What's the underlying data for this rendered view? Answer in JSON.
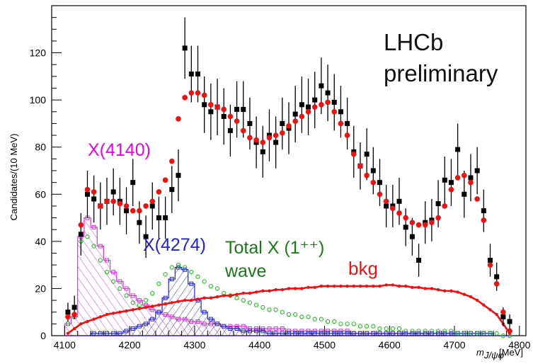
{
  "chart_data": {
    "type": "scatter",
    "title": "",
    "ylabel": "Candidates/(10 MeV)",
    "xlabel_main": "m",
    "xlabel_sub": "J/ψφ",
    "xlabel_unit": "[MeV]",
    "xlim": [
      4080,
      4810
    ],
    "ylim": [
      0,
      140
    ],
    "x_ticks": [
      4100,
      4200,
      4300,
      4400,
      4500,
      4600,
      4700,
      4800
    ],
    "y_ticks": [
      0,
      20,
      40,
      60,
      80,
      100,
      120
    ],
    "annotations": {
      "brand": [
        "LHCb",
        "preliminary"
      ],
      "x4140": "X(4140)",
      "x4274": "X(4274)",
      "total": [
        "Total X (1⁺⁺)",
        "wave"
      ],
      "bkg": "bkg"
    },
    "colors": {
      "data": "#000000",
      "fit": "#ee1111",
      "x4140": "#dd33dd",
      "x4274": "#2222dd",
      "total": "#22bb22",
      "bkg": "#ee1111"
    },
    "series": [
      {
        "key": "data",
        "x": [
          4105,
          4115,
          4125,
          4135,
          4145,
          4155,
          4165,
          4175,
          4185,
          4195,
          4205,
          4215,
          4225,
          4235,
          4245,
          4255,
          4265,
          4275,
          4285,
          4295,
          4305,
          4315,
          4325,
          4335,
          4345,
          4355,
          4365,
          4375,
          4385,
          4395,
          4405,
          4415,
          4425,
          4435,
          4445,
          4455,
          4465,
          4475,
          4485,
          4495,
          4505,
          4515,
          4525,
          4535,
          4545,
          4555,
          4565,
          4575,
          4585,
          4595,
          4605,
          4615,
          4625,
          4635,
          4645,
          4655,
          4665,
          4675,
          4685,
          4695,
          4705,
          4715,
          4725,
          4735,
          4745,
          4755,
          4765,
          4775,
          4785
        ],
        "y": [
          10,
          12,
          43,
          60,
          58,
          55,
          57,
          61,
          57,
          53,
          65,
          48,
          42,
          55,
          50,
          50,
          62,
          68,
          122,
          111,
          111,
          98,
          95,
          97,
          93,
          87,
          96,
          96,
          90,
          82,
          78,
          85,
          82,
          90,
          88,
          94,
          98,
          97,
          100,
          106,
          103,
          99,
          95,
          90,
          78,
          72,
          77,
          70,
          65,
          55,
          55,
          57,
          46,
          42,
          32,
          48,
          49,
          56,
          66,
          65,
          79,
          60,
          67,
          70,
          53,
          32,
          25,
          8,
          6
        ],
        "err": [
          4,
          5,
          9,
          10,
          10,
          10,
          10,
          10,
          10,
          10,
          10,
          9,
          9,
          10,
          9,
          9,
          10,
          11,
          13,
          12,
          12,
          12,
          12,
          12,
          12,
          11,
          12,
          12,
          11,
          11,
          11,
          11,
          11,
          11,
          11,
          12,
          12,
          12,
          12,
          12,
          12,
          12,
          11,
          11,
          11,
          10,
          11,
          10,
          10,
          9,
          9,
          10,
          8,
          8,
          7,
          9,
          9,
          10,
          10,
          10,
          11,
          10,
          10,
          10,
          9,
          7,
          6,
          4,
          3
        ]
      },
      {
        "key": "fit",
        "x": [
          4105,
          4115,
          4125,
          4135,
          4145,
          4155,
          4165,
          4175,
          4185,
          4195,
          4205,
          4215,
          4225,
          4235,
          4245,
          4255,
          4265,
          4275,
          4285,
          4295,
          4305,
          4315,
          4325,
          4335,
          4345,
          4355,
          4365,
          4375,
          4385,
          4395,
          4405,
          4415,
          4425,
          4435,
          4445,
          4455,
          4465,
          4475,
          4485,
          4495,
          4505,
          4515,
          4525,
          4535,
          4545,
          4555,
          4565,
          4575,
          4585,
          4595,
          4605,
          4615,
          4625,
          4635,
          4645,
          4655,
          4665,
          4675,
          4685,
          4695,
          4705,
          4715,
          4725,
          4735,
          4745,
          4755,
          4765,
          4775,
          4785
        ],
        "y": [
          8,
          9,
          47,
          62,
          61,
          55,
          57,
          57,
          56,
          55,
          53,
          53,
          55,
          57,
          61,
          66,
          74,
          92,
          101,
          103,
          103,
          102,
          98,
          97,
          96,
          93,
          91,
          87,
          84,
          83,
          82,
          84,
          85,
          86,
          89,
          91,
          93,
          95,
          97,
          98,
          99,
          95,
          90,
          85,
          77,
          72,
          68,
          65,
          60,
          57,
          54,
          52,
          50,
          48,
          47,
          47,
          48,
          50,
          55,
          62,
          67,
          68,
          65,
          58,
          49,
          30,
          22,
          10,
          2
        ]
      },
      {
        "key": "x4140",
        "x": [
          4105,
          4115,
          4125,
          4135,
          4145,
          4155,
          4165,
          4175,
          4185,
          4195,
          4205,
          4215,
          4225,
          4235,
          4245,
          4255,
          4265,
          4275,
          4285,
          4295,
          4305,
          4315,
          4325,
          4335,
          4345,
          4355,
          4365,
          4375,
          4385,
          4395,
          4405,
          4415,
          4425,
          4435,
          4445,
          4455,
          4465,
          4475,
          4485,
          4495,
          4505,
          4515,
          4525,
          4535,
          4545,
          4555,
          4565,
          4575,
          4585,
          4595,
          4605,
          4615,
          4625,
          4635,
          4645,
          4655,
          4665,
          4675,
          4685,
          4695,
          4705,
          4715,
          4725,
          4735,
          4745,
          4755,
          4765,
          4775,
          4785
        ],
        "y": [
          5,
          8,
          42,
          50,
          46,
          38,
          32,
          27,
          23,
          20,
          17,
          15,
          13,
          11,
          10,
          9,
          8,
          7,
          7,
          6,
          6,
          5,
          5,
          5,
          4,
          4,
          4,
          4,
          3,
          3,
          3,
          3,
          3,
          3,
          2,
          2,
          2,
          2,
          2,
          2,
          2,
          2,
          2,
          2,
          1,
          1,
          1,
          1,
          1,
          1,
          1,
          1,
          1,
          1,
          1,
          1,
          1,
          1,
          1,
          1,
          1,
          1,
          1,
          1,
          1,
          1,
          0,
          0,
          0
        ]
      },
      {
        "key": "x4274",
        "x": [
          4105,
          4115,
          4125,
          4135,
          4145,
          4155,
          4165,
          4175,
          4185,
          4195,
          4205,
          4215,
          4225,
          4235,
          4245,
          4255,
          4265,
          4275,
          4285,
          4295,
          4305,
          4315,
          4325,
          4335,
          4345,
          4355,
          4365,
          4375,
          4385,
          4395,
          4405,
          4415,
          4425,
          4435,
          4445,
          4455,
          4465,
          4475,
          4485,
          4495,
          4505,
          4515,
          4525,
          4535,
          4545,
          4555,
          4565,
          4575,
          4585,
          4595,
          4605,
          4615,
          4625,
          4635,
          4645,
          4655,
          4665,
          4675,
          4685,
          4695,
          4705,
          4715,
          4725,
          4735,
          4745,
          4755,
          4765,
          4775,
          4785
        ],
        "y": [
          0,
          0,
          0,
          0,
          1,
          1,
          1,
          1,
          1,
          2,
          3,
          4,
          5,
          7,
          10,
          16,
          24,
          29,
          28,
          22,
          15,
          10,
          7,
          5,
          4,
          3,
          3,
          2,
          2,
          2,
          2,
          1,
          1,
          1,
          1,
          1,
          1,
          1,
          1,
          1,
          1,
          1,
          1,
          1,
          1,
          1,
          1,
          1,
          1,
          1,
          1,
          1,
          1,
          1,
          1,
          1,
          1,
          1,
          1,
          1,
          1,
          1,
          1,
          1,
          1,
          1,
          0,
          0,
          0
        ]
      },
      {
        "key": "total",
        "x": [
          4105,
          4115,
          4125,
          4135,
          4145,
          4155,
          4165,
          4175,
          4185,
          4195,
          4205,
          4215,
          4225,
          4235,
          4245,
          4255,
          4265,
          4275,
          4285,
          4295,
          4305,
          4315,
          4325,
          4335,
          4345,
          4355,
          4365,
          4375,
          4385,
          4395,
          4405,
          4415,
          4425,
          4435,
          4445,
          4455,
          4465,
          4475,
          4485,
          4495,
          4505,
          4515,
          4525,
          4535,
          4545,
          4555,
          4565,
          4575,
          4585,
          4595,
          4605,
          4615,
          4625,
          4635,
          4645,
          4655,
          4665,
          4675,
          4685,
          4695,
          4705,
          4715,
          4725,
          4735,
          4745,
          4755,
          4765,
          4775,
          4785
        ],
        "y": [
          5,
          8,
          40,
          42,
          38,
          32,
          27,
          23,
          20,
          17,
          14,
          13,
          15,
          18,
          22,
          26,
          29,
          30,
          29,
          27,
          25,
          23,
          21,
          20,
          18,
          17,
          16,
          15,
          14,
          13,
          12,
          11,
          11,
          10,
          9,
          9,
          8,
          8,
          7,
          7,
          6,
          6,
          5,
          5,
          5,
          4,
          4,
          4,
          3,
          3,
          3,
          3,
          2,
          2,
          2,
          2,
          2,
          2,
          2,
          2,
          1,
          1,
          1,
          1,
          1,
          1,
          1,
          0,
          0
        ]
      },
      {
        "key": "bkg",
        "x": [
          4105,
          4115,
          4125,
          4135,
          4145,
          4155,
          4165,
          4175,
          4185,
          4195,
          4205,
          4215,
          4225,
          4235,
          4245,
          4255,
          4265,
          4275,
          4285,
          4295,
          4305,
          4315,
          4325,
          4335,
          4345,
          4355,
          4365,
          4375,
          4385,
          4395,
          4405,
          4415,
          4425,
          4435,
          4445,
          4455,
          4465,
          4475,
          4485,
          4495,
          4505,
          4515,
          4525,
          4535,
          4545,
          4555,
          4565,
          4575,
          4585,
          4595,
          4605,
          4615,
          4625,
          4635,
          4645,
          4655,
          4665,
          4675,
          4685,
          4695,
          4705,
          4715,
          4725,
          4735,
          4745,
          4755,
          4765,
          4775,
          4785
        ],
        "y": [
          1,
          3,
          5,
          6,
          7,
          8,
          9,
          9.5,
          10,
          10.5,
          11,
          11.5,
          12,
          12.5,
          13,
          13.5,
          14,
          14.5,
          15,
          15,
          15.5,
          16,
          16,
          16.5,
          17,
          17,
          17.5,
          18,
          18,
          18.5,
          19,
          19,
          19.5,
          19.5,
          20,
          20,
          20,
          20.5,
          20.5,
          21,
          21,
          21,
          21,
          21,
          21,
          21,
          21,
          21,
          21,
          21.5,
          21.5,
          21,
          21,
          20.5,
          20.5,
          20,
          20,
          19.5,
          19,
          19,
          18.5,
          17.5,
          16.5,
          15,
          13,
          11,
          9,
          5,
          1
        ]
      }
    ]
  }
}
